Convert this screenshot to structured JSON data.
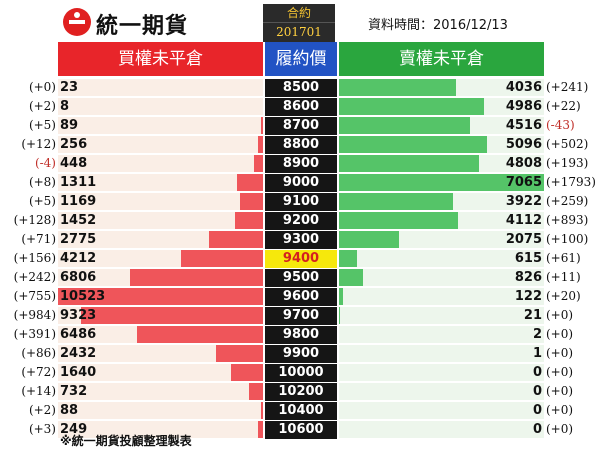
{
  "header": {
    "brand": "統一期貨",
    "contract_label": "合約",
    "contract_month": "201701",
    "date_text": "資料時間：2016/12/13"
  },
  "column_headers": {
    "buy": "買權未平倉",
    "strike": "履約價",
    "sell": "賣權未平倉"
  },
  "footnote": "※統一期貨投顧整理製表",
  "colors": {
    "buy": "#e8252a",
    "sell": "#2aa63e",
    "strike_header": "#2253c4",
    "highlight": "#f6e80c"
  },
  "chart_data": {
    "type": "bar",
    "categories": [
      "8500",
      "8600",
      "8700",
      "8800",
      "8900",
      "9000",
      "9100",
      "9200",
      "9300",
      "9400",
      "9500",
      "9600",
      "9700",
      "9800",
      "9900",
      "10000",
      "10200",
      "10400",
      "10600"
    ],
    "highlight_strike": "9400",
    "buy_max": 10523,
    "sell_max": 7065,
    "series": [
      {
        "name": "買權未平倉",
        "values": [
          23,
          8,
          89,
          256,
          448,
          1311,
          1169,
          1452,
          2775,
          4212,
          6806,
          10523,
          9323,
          6486,
          2432,
          1640,
          732,
          88,
          249
        ],
        "changes": [
          "(+0)",
          "(+2)",
          "(+5)",
          "(+12)",
          "(-4)",
          "(+8)",
          "(+5)",
          "(+128)",
          "(+71)",
          "(+156)",
          "(+242)",
          "(+755)",
          "(+984)",
          "(+391)",
          "(+86)",
          "(+72)",
          "(+14)",
          "(+2)",
          "(+3)"
        ]
      },
      {
        "name": "賣權未平倉",
        "values": [
          4036,
          4986,
          4516,
          5096,
          4808,
          7065,
          3922,
          4112,
          2075,
          615,
          826,
          122,
          21,
          2,
          1,
          0,
          0,
          0,
          0
        ],
        "changes": [
          "(+241)",
          "(+22)",
          "(-43)",
          "(+502)",
          "(+193)",
          "(+1793)",
          "(+259)",
          "(+893)",
          "(+100)",
          "(+61)",
          "(+11)",
          "(+20)",
          "(+0)",
          "(+0)",
          "(+0)",
          "(+0)",
          "(+0)",
          "(+0)",
          "(+0)"
        ]
      }
    ]
  }
}
